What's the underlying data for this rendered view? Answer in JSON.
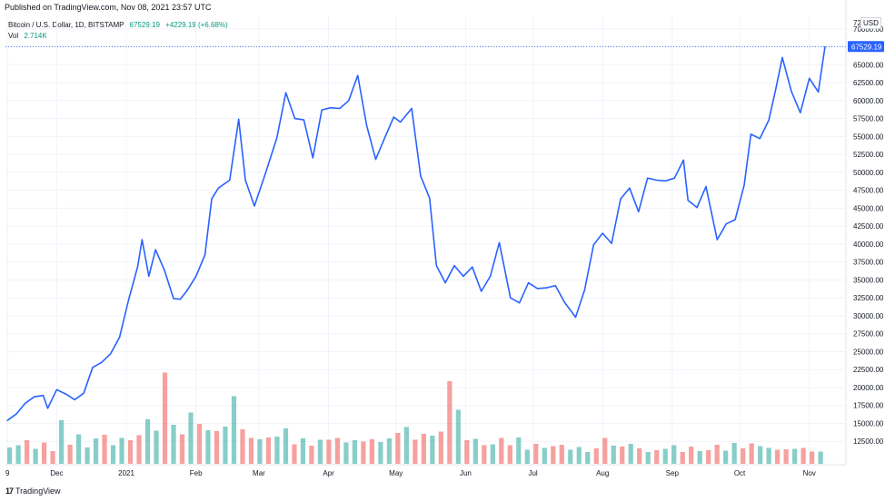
{
  "header": {
    "published": "Published on TradingView.com, Nov 08, 2021 23:57 UTC"
  },
  "legend": {
    "symbol": "Bitcoin / U.S. Dollar, 1D, BITSTAMP",
    "last_value": "67529.19",
    "change": "+4229.19 (+6.68%)",
    "vol_label": "Vol",
    "vol_value": "2.714K"
  },
  "price_axis": {
    "currency": "USD",
    "top_label": "72"
  },
  "footer": {
    "logo": "17",
    "brand": "TradingView"
  },
  "colors": {
    "line": "#2962ff",
    "up_volume": "#26a69a",
    "down_volume": "#ef5350",
    "price_tag": "#2962ff",
    "grid": "#f0f3fa"
  },
  "chart_data": {
    "type": "line",
    "title": "Bitcoin / U.S. Dollar, 1D, BITSTAMP",
    "xlabel": "",
    "ylabel": "",
    "ylim": [
      10000,
      72500
    ],
    "x_ticks": [
      "9",
      "Dec",
      "2021",
      "Feb",
      "Mar",
      "Apr",
      "May",
      "Jun",
      "Jul",
      "Aug",
      "Sep",
      "Oct",
      "Nov"
    ],
    "y_ticks": [
      12500,
      15000,
      17500,
      20000,
      22500,
      25000,
      27500,
      30000,
      32500,
      35000,
      37500,
      40000,
      42500,
      45000,
      47500,
      50000,
      52500,
      55000,
      57500,
      60000,
      62500,
      65000,
      67500,
      70000
    ],
    "y_tick_labels": [
      "12500.00",
      "15000.00",
      "17500.00",
      "20000.00",
      "22500.00",
      "25000.00",
      "27500.00",
      "30000.00",
      "32500.00",
      "35000.00",
      "37500.00",
      "40000.00",
      "42500.00",
      "45000.00",
      "47500.00",
      "50000.00",
      "52500.00",
      "55000.00",
      "57500.00",
      "60000.00",
      "62500.00",
      "65000.00",
      "",
      "70000.00"
    ],
    "last_price": 67529.19,
    "last_price_label": "67529.19",
    "series": [
      {
        "name": "Bitcoin / U.S. Dollar",
        "x": [
          "2020-11-09",
          "2020-11-13",
          "2020-11-17",
          "2020-11-21",
          "2020-11-25",
          "2020-11-27",
          "2020-12-01",
          "2020-12-05",
          "2020-12-09",
          "2020-12-13",
          "2020-12-17",
          "2020-12-21",
          "2020-12-25",
          "2020-12-29",
          "2021-01-02",
          "2021-01-06",
          "2021-01-08",
          "2021-01-11",
          "2021-01-14",
          "2021-01-18",
          "2021-01-22",
          "2021-01-25",
          "2021-01-28",
          "2021-02-01",
          "2021-02-05",
          "2021-02-08",
          "2021-02-11",
          "2021-02-16",
          "2021-02-20",
          "2021-02-23",
          "2021-02-27",
          "2021-03-04",
          "2021-03-09",
          "2021-03-13",
          "2021-03-17",
          "2021-03-21",
          "2021-03-25",
          "2021-03-29",
          "2021-04-02",
          "2021-04-06",
          "2021-04-10",
          "2021-04-14",
          "2021-04-18",
          "2021-04-22",
          "2021-04-26",
          "2021-04-30",
          "2021-05-03",
          "2021-05-08",
          "2021-05-12",
          "2021-05-16",
          "2021-05-19",
          "2021-05-23",
          "2021-05-27",
          "2021-05-31",
          "2021-06-04",
          "2021-06-08",
          "2021-06-12",
          "2021-06-16",
          "2021-06-21",
          "2021-06-25",
          "2021-06-29",
          "2021-07-03",
          "2021-07-07",
          "2021-07-11",
          "2021-07-15",
          "2021-07-20",
          "2021-07-24",
          "2021-07-28",
          "2021-08-01",
          "2021-08-05",
          "2021-08-09",
          "2021-08-13",
          "2021-08-17",
          "2021-08-21",
          "2021-08-25",
          "2021-08-29",
          "2021-09-02",
          "2021-09-06",
          "2021-09-08",
          "2021-09-12",
          "2021-09-16",
          "2021-09-21",
          "2021-09-25",
          "2021-09-29",
          "2021-10-03",
          "2021-10-06",
          "2021-10-10",
          "2021-10-14",
          "2021-10-17",
          "2021-10-20",
          "2021-10-24",
          "2021-10-28",
          "2021-11-01",
          "2021-11-05",
          "2021-11-08"
        ],
        "values": [
          15400,
          16300,
          17800,
          18700,
          18900,
          17100,
          19700,
          19100,
          18300,
          19200,
          22800,
          23500,
          24700,
          27000,
          32200,
          36800,
          40600,
          35500,
          39200,
          36300,
          32400,
          32300,
          33500,
          35500,
          38500,
          46300,
          47800,
          48900,
          57400,
          48900,
          45300,
          49900,
          54800,
          61100,
          57500,
          57300,
          52000,
          58700,
          59000,
          58900,
          60000,
          63500,
          56500,
          51800,
          54800,
          57700,
          57000,
          58900,
          49500,
          46400,
          37000,
          34600,
          37000,
          35500,
          36800,
          33400,
          35500,
          40200,
          32500,
          31800,
          34600,
          33800,
          33900,
          34200,
          31900,
          29800,
          33600,
          39900,
          41500,
          40100,
          46300,
          47800,
          44500,
          49200,
          48900,
          48800,
          49200,
          51700,
          46100,
          45100,
          48000,
          40600,
          42800,
          43400,
          48200,
          55300,
          54700,
          57300,
          61500,
          66000,
          61300,
          58300,
          63100,
          61200,
          67529.19
        ]
      }
    ],
    "volume": {
      "name": "Vol",
      "last_value": "2.714K",
      "values": [
        3.6,
        4.1,
        5.2,
        3.3,
        4.7,
        2.8,
        9.6,
        4.2,
        6.5,
        3.6,
        5.6,
        6.4,
        4.1,
        5.7,
        5.2,
        6.3,
        9.8,
        7.3,
        20.1,
        8.6,
        6.5,
        11.3,
        8.8,
        7.4,
        7.2,
        8.2,
        14.9,
        7.6,
        5.7,
        5.4,
        5.8,
        6.0,
        7.8,
        4.3,
        5.6,
        4.0,
        5.3,
        5.3,
        5.7,
        4.7,
        5.2,
        4.9,
        5.4,
        4.8,
        5.6,
        6.8,
        8.1,
        5.3,
        6.6,
        6.2,
        7.1,
        18.2,
        11.9,
        5.2,
        5.5,
        4.1,
        4.3,
        5.7,
        4.1,
        5.8,
        3.1,
        4.4,
        3.5,
        3.9,
        4.2,
        3.1,
        3.7,
        2.6,
        3.4,
        5.7,
        4.0,
        3.8,
        4.4,
        3.4,
        2.6,
        3.0,
        3.3,
        4.1,
        2.6,
        3.8,
        2.8,
        3.0,
        4.2,
        2.9,
        4.6,
        3.4,
        4.5,
        3.9,
        3.5,
        3.1,
        3.2,
        3.3,
        3.5,
        2.7,
        2.7
      ],
      "colors": [
        "up",
        "up",
        "down",
        "up",
        "down",
        "down",
        "up",
        "down",
        "up",
        "up",
        "up",
        "down",
        "up",
        "up",
        "down",
        "down",
        "up",
        "up",
        "down",
        "up",
        "down",
        "up",
        "down",
        "up",
        "down",
        "up",
        "up",
        "down",
        "down",
        "up",
        "down",
        "up",
        "up",
        "down",
        "up",
        "down",
        "up",
        "down",
        "down",
        "up",
        "up",
        "down",
        "down",
        "up",
        "up",
        "down",
        "up",
        "down",
        "down",
        "up",
        "down",
        "down",
        "up",
        "down",
        "up",
        "down",
        "up",
        "down",
        "down",
        "up",
        "up",
        "down",
        "up",
        "down",
        "down",
        "up",
        "up",
        "up",
        "down",
        "down",
        "up",
        "down",
        "up",
        "down",
        "up",
        "down",
        "up",
        "up",
        "down",
        "down",
        "up",
        "down",
        "down",
        "up",
        "up",
        "down",
        "down",
        "up",
        "up",
        "down",
        "down",
        "up",
        "down",
        "down",
        "up"
      ],
      "max_displayed": 26
    }
  }
}
